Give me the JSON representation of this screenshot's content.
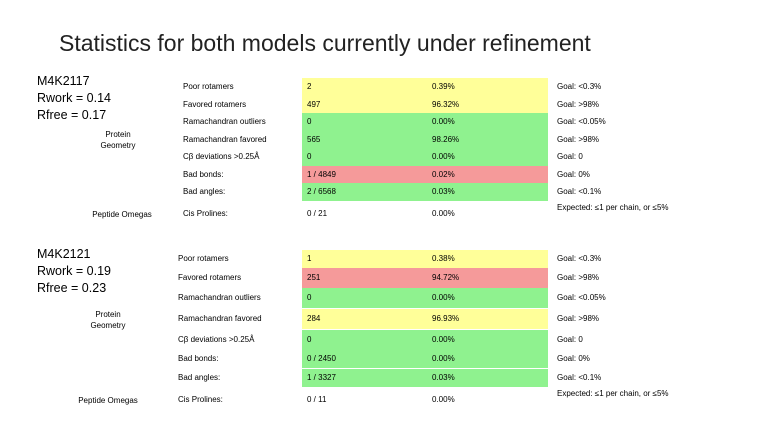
{
  "title": "Statistics for both models currently under refinement",
  "models": [
    {
      "id": "M4K2117",
      "rwork": "Rwork = 0.14",
      "rfree": "Rfree = 0.17",
      "protein_label": "Protein Geometry",
      "peptide_label": "Peptide Omegas",
      "rows": [
        {
          "name": "Poor rotamers",
          "count": "2",
          "pct": "0.39%",
          "goal": "Goal: <0.3%",
          "color": "#ffff99"
        },
        {
          "name": "Favored rotamers",
          "count": "497",
          "pct": "96.32%",
          "goal": "Goal: >98%",
          "color": "#ffff99"
        },
        {
          "name": "Ramachandran outliers",
          "count": "0",
          "pct": "0.00%",
          "goal": "Goal: <0.05%",
          "color": "#8ff28f"
        },
        {
          "name": "Ramachandran favored",
          "count": "565",
          "pct": "98.26%",
          "goal": "Goal: >98%",
          "color": "#8ff28f"
        },
        {
          "name": "Cβ deviations >0.25Å",
          "count": "0",
          "pct": "0.00%",
          "goal": "Goal: 0",
          "color": "#8ff28f"
        },
        {
          "name": "Bad bonds:",
          "count": "1 / 4849",
          "pct": "0.02%",
          "goal": "Goal: 0%",
          "color": "#f59a9a"
        },
        {
          "name": "Bad angles:",
          "count": "2 / 6568",
          "pct": "0.03%",
          "goal": "Goal: <0.1%",
          "color": "#8ff28f"
        },
        {
          "name": "Cis Prolines:",
          "count": "0 / 21",
          "pct": "0.00%",
          "goal": "Expected: ≤1 per chain, or ≤5%",
          "color": "transparent"
        }
      ]
    },
    {
      "id": "M4K2121",
      "rwork": "Rwork = 0.19",
      "rfree": "Rfree = 0.23",
      "protein_label": "Protein Geometry",
      "peptide_label": "Peptide Omegas",
      "rows": [
        {
          "name": "Poor rotamers",
          "count": "1",
          "pct": "0.38%",
          "goal": "Goal: <0.3%",
          "color": "#ffff99"
        },
        {
          "name": "Favored rotamers",
          "count": "251",
          "pct": "94.72%",
          "goal": "Goal: >98%",
          "color": "#f59a9a"
        },
        {
          "name": "Ramachandran outliers",
          "count": "0",
          "pct": "0.00%",
          "goal": "Goal: <0.05%",
          "color": "#8ff28f"
        },
        {
          "name": "Ramachandran favored",
          "count": "284",
          "pct": "96.93%",
          "goal": "Goal: >98%",
          "color": "#ffff99"
        },
        {
          "name": "Cβ deviations >0.25Å",
          "count": "0",
          "pct": "0.00%",
          "goal": "Goal: 0",
          "color": "#8ff28f"
        },
        {
          "name": "Bad bonds:",
          "count": "0 / 2450",
          "pct": "0.00%",
          "goal": "Goal: 0%",
          "color": "#8ff28f"
        },
        {
          "name": "Bad angles:",
          "count": "1 / 3327",
          "pct": "0.03%",
          "goal": "Goal: <0.1%",
          "color": "#8ff28f"
        },
        {
          "name": "Cis Prolines:",
          "count": "0 / 11",
          "pct": "0.00%",
          "goal": "Expected: ≤1 per chain, or ≤5%",
          "color": "transparent"
        }
      ]
    }
  ]
}
